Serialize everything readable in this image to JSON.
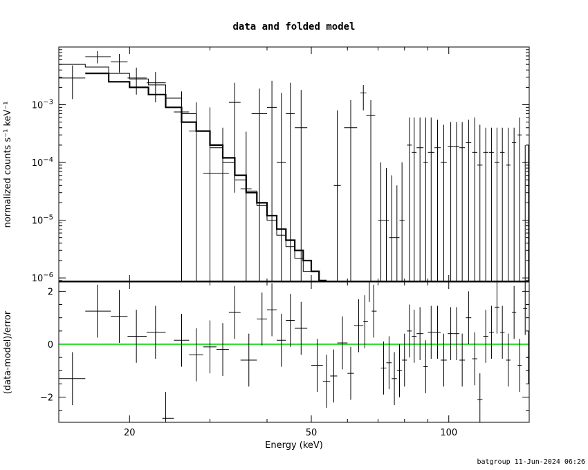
{
  "chart_data": [
    {
      "type": "scatter",
      "subtype": "spectrum_with_model",
      "title": "data and folded model",
      "ylabel": "normalized counts s⁻¹ keV⁻¹",
      "x_scale": "log",
      "y_scale": "log",
      "xlim": [
        14,
        150
      ],
      "ylim": [
        8.5e-07,
        0.01
      ],
      "y_ticks": [
        {
          "value": 0.001,
          "label_base": "10",
          "label_exp": "−3"
        },
        {
          "value": 0.0001,
          "label_base": "10",
          "label_exp": "−4"
        },
        {
          "value": 1e-05,
          "label_base": "10",
          "label_exp": "−5"
        },
        {
          "value": 1e-06,
          "label_base": "10",
          "label_exp": "−6"
        }
      ],
      "data_points": [
        {
          "x": 15.0,
          "xlo": 14.0,
          "xhi": 16.0,
          "y": 0.0029,
          "ylo": 0.00125,
          "yhi": 0.0048
        },
        {
          "x": 17.0,
          "xlo": 16.0,
          "xhi": 18.2,
          "y": 0.0068,
          "ylo": 0.0052,
          "yhi": 0.0085
        },
        {
          "x": 19.0,
          "xlo": 18.2,
          "xhi": 19.8,
          "y": 0.0055,
          "ylo": 0.0036,
          "yhi": 0.0076
        },
        {
          "x": 20.7,
          "xlo": 19.8,
          "xhi": 21.8,
          "y": 0.0029,
          "ylo": 0.0015,
          "yhi": 0.0044
        },
        {
          "x": 22.8,
          "xlo": 21.8,
          "xhi": 24.0,
          "y": 0.0024,
          "ylo": 0.0011,
          "yhi": 0.0037
        },
        {
          "x": 26.0,
          "xlo": 25.0,
          "xhi": 27.0,
          "y": 0.00075,
          "ylo": 8.5e-07,
          "yhi": 0.0017
        },
        {
          "x": 28.0,
          "xlo": 27.0,
          "xhi": 29.0,
          "y": 0.00035,
          "ylo": 8.5e-07,
          "yhi": 0.0011
        },
        {
          "x": 30.0,
          "xlo": 29.0,
          "xhi": 31.0,
          "y": 6.5e-05,
          "ylo": 8.5e-07,
          "yhi": 0.0009
        },
        {
          "x": 32.0,
          "xlo": 31.0,
          "xhi": 33.0,
          "y": 6.5e-05,
          "ylo": 8.5e-07,
          "yhi": 0.0004
        },
        {
          "x": 34.0,
          "xlo": 33.0,
          "xhi": 35.0,
          "y": 0.0011,
          "ylo": 3e-05,
          "yhi": 0.0024
        },
        {
          "x": 36.0,
          "xlo": 35.0,
          "xhi": 37.0,
          "y": 3.5e-05,
          "ylo": 8.5e-07,
          "yhi": 0.00034
        },
        {
          "x": 38.5,
          "xlo": 37.0,
          "xhi": 40.0,
          "y": 0.0007,
          "ylo": 8.5e-07,
          "yhi": 0.0019
        },
        {
          "x": 41.0,
          "xlo": 40.0,
          "xhi": 42.0,
          "y": 0.0009,
          "ylo": 8.5e-07,
          "yhi": 0.0026
        },
        {
          "x": 43.0,
          "xlo": 42.0,
          "xhi": 44.0,
          "y": 0.0001,
          "ylo": 8.5e-07,
          "yhi": 0.0016
        },
        {
          "x": 45.0,
          "xlo": 44.0,
          "xhi": 46.0,
          "y": 0.0007,
          "ylo": 8.5e-07,
          "yhi": 0.0024
        },
        {
          "x": 47.5,
          "xlo": 46.0,
          "xhi": 49.0,
          "y": 0.0004,
          "ylo": 8.5e-07,
          "yhi": 0.0018
        },
        {
          "x": 57.0,
          "xlo": 56.0,
          "xhi": 58.0,
          "y": 4e-05,
          "ylo": 8.5e-07,
          "yhi": 0.0008
        },
        {
          "x": 61.0,
          "xlo": 59.0,
          "xhi": 63.0,
          "y": 0.0004,
          "ylo": 8.5e-07,
          "yhi": 0.0012
        },
        {
          "x": 65.0,
          "xlo": 64.0,
          "xhi": 66.0,
          "y": 0.0016,
          "ylo": 0.0008,
          "yhi": 0.0022
        },
        {
          "x": 67.5,
          "xlo": 66.0,
          "xhi": 69.0,
          "y": 0.00065,
          "ylo": 8.5e-07,
          "yhi": 0.0012
        },
        {
          "x": 71.0,
          "xlo": 70.0,
          "xhi": 72.0,
          "y": 1e-05,
          "ylo": 8.5e-07,
          "yhi": 0.0001
        },
        {
          "x": 73.0,
          "xlo": 72.0,
          "xhi": 74.0,
          "y": 1e-05,
          "ylo": 8.5e-07,
          "yhi": 8e-05
        },
        {
          "x": 75.0,
          "xlo": 74.0,
          "xhi": 76.0,
          "y": 5e-06,
          "ylo": 8.5e-07,
          "yhi": 6e-05
        },
        {
          "x": 77.0,
          "xlo": 76.0,
          "xhi": 78.0,
          "y": 5e-06,
          "ylo": 8.5e-07,
          "yhi": 4e-05
        },
        {
          "x": 79.0,
          "xlo": 78.0,
          "xhi": 80.0,
          "y": 1e-05,
          "ylo": 8.5e-07,
          "yhi": 0.0001
        },
        {
          "x": 82.0,
          "xlo": 81.0,
          "xhi": 83.0,
          "y": 0.0002,
          "ylo": 8.5e-07,
          "yhi": 0.0006
        },
        {
          "x": 84.0,
          "xlo": 83.0,
          "xhi": 85.0,
          "y": 0.00015,
          "ylo": 8.5e-07,
          "yhi": 0.0006
        },
        {
          "x": 86.5,
          "xlo": 85.0,
          "xhi": 88.0,
          "y": 0.00018,
          "ylo": 8.5e-07,
          "yhi": 0.0006
        },
        {
          "x": 89.0,
          "xlo": 88.0,
          "xhi": 90.0,
          "y": 0.0001,
          "ylo": 8.5e-07,
          "yhi": 0.0006
        },
        {
          "x": 91.5,
          "xlo": 90.0,
          "xhi": 93.0,
          "y": 0.00015,
          "ylo": 8.5e-07,
          "yhi": 0.0006
        },
        {
          "x": 94.5,
          "xlo": 93.0,
          "xhi": 96.0,
          "y": 0.00018,
          "ylo": 8.5e-07,
          "yhi": 0.00055
        },
        {
          "x": 97.5,
          "xlo": 96.0,
          "xhi": 99.0,
          "y": 0.0001,
          "ylo": 8.5e-07,
          "yhi": 0.00045
        },
        {
          "x": 101.0,
          "xlo": 99.5,
          "xhi": 102.5,
          "y": 0.00019,
          "ylo": 8.5e-07,
          "yhi": 0.0005
        },
        {
          "x": 104.0,
          "xlo": 102.5,
          "xhi": 105.5,
          "y": 0.00019,
          "ylo": 8.5e-07,
          "yhi": 0.0005
        },
        {
          "x": 107.0,
          "xlo": 105.5,
          "xhi": 108.5,
          "y": 0.00018,
          "ylo": 8.5e-07,
          "yhi": 0.0005
        },
        {
          "x": 110.5,
          "xlo": 109.0,
          "xhi": 112.0,
          "y": 0.00022,
          "ylo": 8.5e-07,
          "yhi": 0.00055
        },
        {
          "x": 114.0,
          "xlo": 112.5,
          "xhi": 115.5,
          "y": 0.00015,
          "ylo": 8.5e-07,
          "yhi": 0.0006
        },
        {
          "x": 117.0,
          "xlo": 115.5,
          "xhi": 118.5,
          "y": 9e-05,
          "ylo": 8.5e-07,
          "yhi": 0.00045
        },
        {
          "x": 120.5,
          "xlo": 119.0,
          "xhi": 122.0,
          "y": 0.00015,
          "ylo": 8.5e-07,
          "yhi": 0.0004
        },
        {
          "x": 124.0,
          "xlo": 122.5,
          "xhi": 125.5,
          "y": 0.00015,
          "ylo": 8.5e-07,
          "yhi": 0.0004
        },
        {
          "x": 127.5,
          "xlo": 126.0,
          "xhi": 129.0,
          "y": 0.0001,
          "ylo": 8.5e-07,
          "yhi": 0.0004
        },
        {
          "x": 131.0,
          "xlo": 129.5,
          "xhi": 132.5,
          "y": 0.00015,
          "ylo": 8.5e-07,
          "yhi": 0.0004
        },
        {
          "x": 135.0,
          "xlo": 133.5,
          "xhi": 136.5,
          "y": 9e-05,
          "ylo": 8.5e-07,
          "yhi": 0.0004
        },
        {
          "x": 139.0,
          "xlo": 137.5,
          "xhi": 140.5,
          "y": 0.00022,
          "ylo": 8.5e-07,
          "yhi": 0.0004
        },
        {
          "x": 143.0,
          "xlo": 141.5,
          "xhi": 144.5,
          "y": 0.0003,
          "ylo": 8.5e-07,
          "yhi": 0.0006
        },
        {
          "x": 147.0,
          "xlo": 145.5,
          "xhi": 148.5,
          "y": 0.0001,
          "ylo": 8.5e-07,
          "yhi": 0.0002
        },
        {
          "x": 149.5,
          "xlo": 148.5,
          "xhi": 150.0,
          "y": 1e-05,
          "ylo": 8.5e-07,
          "yhi": 0.0002
        }
      ],
      "model_thin_step": {
        "edges": [
          14,
          16,
          18,
          20,
          22,
          24,
          26,
          28,
          30,
          32,
          34,
          36,
          38,
          40,
          42,
          44,
          46,
          48,
          50
        ],
        "values": [
          0.005,
          0.0045,
          0.0035,
          0.0028,
          0.0022,
          0.0013,
          0.0007,
          0.00035,
          0.00018,
          0.0001,
          5e-05,
          3.2e-05,
          1.8e-05,
          1e-05,
          5.5e-06,
          3.5e-06,
          2.2e-06,
          1.3e-06
        ]
      },
      "model_thick_step": {
        "edges": [
          16,
          18,
          20,
          22,
          24,
          26,
          28,
          30,
          32,
          34,
          36,
          38,
          40,
          42,
          44,
          46,
          48,
          50,
          52,
          54
        ],
        "values": [
          0.0035,
          0.0025,
          0.002,
          0.0015,
          0.0009,
          0.0005,
          0.00035,
          0.0002,
          0.00012,
          6e-05,
          3e-05,
          2e-05,
          1.2e-05,
          7e-06,
          4.5e-06,
          3e-06,
          2e-06,
          1.3e-06,
          9e-07
        ]
      }
    },
    {
      "type": "scatter",
      "subtype": "residuals",
      "ylabel": "(data-model)/error",
      "xlabel": "Energy (keV)",
      "x_scale": "log",
      "xlim": [
        14,
        150
      ],
      "ylim": [
        -2.95,
        2.35
      ],
      "x_ticks": [
        {
          "value": 20,
          "label": "20"
        },
        {
          "value": 50,
          "label": "50"
        },
        {
          "value": 100,
          "label": "100"
        }
      ],
      "y_ticks": [
        {
          "value": 2,
          "label": "2"
        },
        {
          "value": 0,
          "label": "0"
        },
        {
          "value": -2,
          "label": "−2"
        }
      ],
      "zero_line_color": "#33dd33",
      "residuals": [
        {
          "x": 15.0,
          "xlo": 14.0,
          "xhi": 16.0,
          "y": -1.3,
          "ylo": -2.3,
          "yhi": -0.3
        },
        {
          "x": 17.0,
          "xlo": 16.0,
          "xhi": 18.2,
          "y": 1.25,
          "ylo": 0.25,
          "yhi": 2.25
        },
        {
          "x": 19.0,
          "xlo": 18.2,
          "xhi": 19.8,
          "y": 1.05,
          "ylo": 0.05,
          "yhi": 2.05
        },
        {
          "x": 20.7,
          "xlo": 19.8,
          "xhi": 21.8,
          "y": 0.3,
          "ylo": -0.7,
          "yhi": 1.3
        },
        {
          "x": 22.8,
          "xlo": 21.8,
          "xhi": 24.0,
          "y": 0.45,
          "ylo": -0.55,
          "yhi": 1.45
        },
        {
          "x": 24.0,
          "xlo": 23.6,
          "xhi": 25.0,
          "y": -2.8,
          "ylo": -3.8,
          "yhi": -1.8
        },
        {
          "x": 26.0,
          "xlo": 25.0,
          "xhi": 27.0,
          "y": 0.15,
          "ylo": -0.85,
          "yhi": 1.15
        },
        {
          "x": 28.0,
          "xlo": 27.0,
          "xhi": 29.0,
          "y": -0.4,
          "ylo": -1.4,
          "yhi": 0.6
        },
        {
          "x": 30.0,
          "xlo": 29.0,
          "xhi": 31.0,
          "y": -0.1,
          "ylo": -1.1,
          "yhi": 0.9
        },
        {
          "x": 32.0,
          "xlo": 31.0,
          "xhi": 33.0,
          "y": -0.2,
          "ylo": -1.2,
          "yhi": 0.8
        },
        {
          "x": 34.0,
          "xlo": 33.0,
          "xhi": 35.0,
          "y": 1.2,
          "ylo": 0.2,
          "yhi": 2.2
        },
        {
          "x": 36.5,
          "xlo": 35.0,
          "xhi": 38.0,
          "y": -0.6,
          "ylo": -1.6,
          "yhi": 0.4
        },
        {
          "x": 39.0,
          "xlo": 38.0,
          "xhi": 40.0,
          "y": 0.95,
          "ylo": -0.05,
          "yhi": 1.95
        },
        {
          "x": 41.0,
          "xlo": 40.0,
          "xhi": 42.0,
          "y": 1.3,
          "ylo": 0.3,
          "yhi": 2.3
        },
        {
          "x": 43.0,
          "xlo": 42.0,
          "xhi": 44.0,
          "y": 0.15,
          "ylo": -0.85,
          "yhi": 1.15
        },
        {
          "x": 45.0,
          "xlo": 44.0,
          "xhi": 46.0,
          "y": 0.9,
          "ylo": -0.1,
          "yhi": 1.9
        },
        {
          "x": 47.5,
          "xlo": 46.0,
          "xhi": 49.0,
          "y": 0.6,
          "ylo": -0.4,
          "yhi": 1.6
        },
        {
          "x": 51.5,
          "xlo": 50.0,
          "xhi": 53.0,
          "y": -0.8,
          "ylo": -1.8,
          "yhi": 0.2
        },
        {
          "x": 54.0,
          "xlo": 53.0,
          "xhi": 55.0,
          "y": -1.4,
          "ylo": -2.4,
          "yhi": -0.4
        },
        {
          "x": 56.0,
          "xlo": 55.0,
          "xhi": 57.0,
          "y": -1.2,
          "ylo": -2.2,
          "yhi": -0.2
        },
        {
          "x": 58.5,
          "xlo": 57.0,
          "xhi": 60.0,
          "y": 0.05,
          "ylo": -0.95,
          "yhi": 1.05
        },
        {
          "x": 61.0,
          "xlo": 60.0,
          "xhi": 62.0,
          "y": -1.1,
          "ylo": -2.1,
          "yhi": -0.1
        },
        {
          "x": 63.5,
          "xlo": 62.0,
          "xhi": 65.0,
          "y": 0.7,
          "ylo": -0.3,
          "yhi": 1.7
        },
        {
          "x": 65.5,
          "xlo": 65.0,
          "xhi": 66.5,
          "y": 0.85,
          "ylo": -0.15,
          "yhi": 1.85
        },
        {
          "x": 67.0,
          "xlo": 66.5,
          "xhi": 67.8,
          "y": 2.6,
          "ylo": 1.6,
          "yhi": 3.6
        },
        {
          "x": 68.5,
          "xlo": 67.8,
          "xhi": 69.5,
          "y": 1.25,
          "ylo": 0.25,
          "yhi": 2.25
        },
        {
          "x": 72.0,
          "xlo": 71.0,
          "xhi": 73.0,
          "y": -0.9,
          "ylo": -1.9,
          "yhi": 0.1
        },
        {
          "x": 74.0,
          "xlo": 73.0,
          "xhi": 75.0,
          "y": -0.7,
          "ylo": -1.7,
          "yhi": 0.3
        },
        {
          "x": 76.0,
          "xlo": 75.0,
          "xhi": 77.0,
          "y": -1.3,
          "ylo": -2.3,
          "yhi": -0.3
        },
        {
          "x": 78.0,
          "xlo": 77.0,
          "xhi": 79.0,
          "y": -1.0,
          "ylo": -2.0,
          "yhi": 0.0
        },
        {
          "x": 80.0,
          "xlo": 79.0,
          "xhi": 81.0,
          "y": -0.6,
          "ylo": -1.6,
          "yhi": 0.4
        },
        {
          "x": 82.0,
          "xlo": 81.0,
          "xhi": 83.0,
          "y": 0.5,
          "ylo": -0.5,
          "yhi": 1.5
        },
        {
          "x": 84.0,
          "xlo": 83.0,
          "xhi": 85.0,
          "y": 0.3,
          "ylo": -0.7,
          "yhi": 1.3
        },
        {
          "x": 86.5,
          "xlo": 85.0,
          "xhi": 88.0,
          "y": 0.4,
          "ylo": -0.6,
          "yhi": 1.4
        },
        {
          "x": 89.0,
          "xlo": 88.0,
          "xhi": 90.0,
          "y": -0.85,
          "ylo": -1.85,
          "yhi": 0.15
        },
        {
          "x": 91.5,
          "xlo": 90.0,
          "xhi": 93.0,
          "y": 0.45,
          "ylo": -0.55,
          "yhi": 1.45
        },
        {
          "x": 94.5,
          "xlo": 93.0,
          "xhi": 96.0,
          "y": 0.45,
          "ylo": -0.55,
          "yhi": 1.45
        },
        {
          "x": 97.5,
          "xlo": 96.0,
          "xhi": 99.0,
          "y": -0.6,
          "ylo": -1.6,
          "yhi": 0.4
        },
        {
          "x": 101.0,
          "xlo": 99.5,
          "xhi": 102.5,
          "y": 0.4,
          "ylo": -0.6,
          "yhi": 1.4
        },
        {
          "x": 104.0,
          "xlo": 102.5,
          "xhi": 105.5,
          "y": 0.4,
          "ylo": -0.6,
          "yhi": 1.4
        },
        {
          "x": 107.0,
          "xlo": 105.5,
          "xhi": 108.5,
          "y": -0.6,
          "ylo": -1.6,
          "yhi": 0.4
        },
        {
          "x": 110.5,
          "xlo": 109.0,
          "xhi": 112.0,
          "y": 1.0,
          "ylo": 0.0,
          "yhi": 2.0
        },
        {
          "x": 114.0,
          "xlo": 112.5,
          "xhi": 115.5,
          "y": -0.55,
          "ylo": -1.55,
          "yhi": 0.45
        },
        {
          "x": 117.0,
          "xlo": 115.5,
          "xhi": 118.5,
          "y": -2.1,
          "ylo": -3.1,
          "yhi": -1.1
        },
        {
          "x": 120.5,
          "xlo": 119.0,
          "xhi": 122.0,
          "y": 0.3,
          "ylo": -0.7,
          "yhi": 1.3
        },
        {
          "x": 124.0,
          "xlo": 122.5,
          "xhi": 125.5,
          "y": 0.45,
          "ylo": -0.55,
          "yhi": 1.45
        },
        {
          "x": 127.5,
          "xlo": 126.0,
          "xhi": 129.0,
          "y": 1.4,
          "ylo": 0.4,
          "yhi": 2.4
        },
        {
          "x": 131.0,
          "xlo": 129.5,
          "xhi": 132.5,
          "y": 0.45,
          "ylo": -0.55,
          "yhi": 1.45
        },
        {
          "x": 135.0,
          "xlo": 133.5,
          "xhi": 136.5,
          "y": -0.6,
          "ylo": -1.6,
          "yhi": 0.4
        },
        {
          "x": 139.0,
          "xlo": 137.5,
          "xhi": 140.5,
          "y": 1.2,
          "ylo": 0.2,
          "yhi": 2.2
        },
        {
          "x": 143.0,
          "xlo": 141.5,
          "xhi": 144.5,
          "y": -0.8,
          "ylo": -1.8,
          "yhi": 0.2
        },
        {
          "x": 147.0,
          "xlo": 145.5,
          "xhi": 148.5,
          "y": 1.35,
          "ylo": 0.35,
          "yhi": 2.35
        },
        {
          "x": 149.5,
          "xlo": 148.5,
          "xhi": 150.0,
          "y": -0.5,
          "ylo": -1.5,
          "yhi": 0.5
        }
      ]
    }
  ],
  "footer": {
    "text": "batgroup 11-Jun-2024 06:26"
  }
}
